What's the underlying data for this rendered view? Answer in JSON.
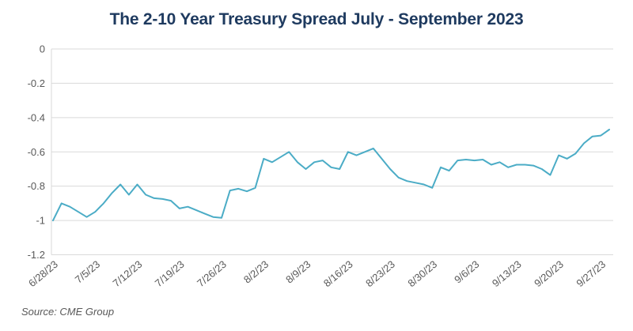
{
  "title": "The 2-10 Year Treasury Spread July - September 2023",
  "source": "Source: CME Group",
  "colors": {
    "title_text": "#1E3A5F",
    "line": "#4BACC6",
    "grid": "#D9D9D9",
    "axis_text": "#595959",
    "source_text": "#595959",
    "background": "#FFFFFF"
  },
  "chart_data": {
    "type": "line",
    "title": "The 2-10 Year Treasury Spread July - September 2023",
    "series_name": "2-10 Year Treasury Spread",
    "xlabel": "",
    "ylabel": "",
    "ylim": [
      -1.2,
      0
    ],
    "grid": "horizontal",
    "legend_position": "none",
    "y_ticks": [
      0,
      -0.2,
      -0.4,
      -0.6,
      -0.8,
      -1,
      -1.2
    ],
    "y_tick_labels": [
      "0",
      "-0.2",
      "-0.4",
      "-0.6",
      "-0.8",
      "-1",
      "-1.2"
    ],
    "x_tick_indices": [
      0,
      5,
      10,
      15,
      20,
      25,
      30,
      35,
      40,
      45,
      50,
      55,
      60,
      65
    ],
    "x_tick_labels": [
      "6/28/23",
      "7/5/23",
      "7/12/23",
      "7/19/23",
      "7/26/23",
      "8/2/23",
      "8/9/23",
      "8/16/23",
      "8/23/23",
      "8/30/23",
      "9/6/23",
      "9/13/23",
      "9/20/23",
      "9/27/23"
    ],
    "x": [
      "6/28/23",
      "6/29/23",
      "6/30/23",
      "7/3/23",
      "7/4/23",
      "7/5/23",
      "7/6/23",
      "7/7/23",
      "7/10/23",
      "7/11/23",
      "7/12/23",
      "7/13/23",
      "7/14/23",
      "7/17/23",
      "7/18/23",
      "7/19/23",
      "7/20/23",
      "7/21/23",
      "7/24/23",
      "7/25/23",
      "7/26/23",
      "7/27/23",
      "7/28/23",
      "7/31/23",
      "8/1/23",
      "8/2/23",
      "8/3/23",
      "8/4/23",
      "8/7/23",
      "8/8/23",
      "8/9/23",
      "8/10/23",
      "8/11/23",
      "8/14/23",
      "8/15/23",
      "8/16/23",
      "8/17/23",
      "8/18/23",
      "8/21/23",
      "8/22/23",
      "8/23/23",
      "8/24/23",
      "8/25/23",
      "8/28/23",
      "8/29/23",
      "8/30/23",
      "8/31/23",
      "9/1/23",
      "9/4/23",
      "9/5/23",
      "9/6/23",
      "9/7/23",
      "9/8/23",
      "9/11/23",
      "9/12/23",
      "9/13/23",
      "9/14/23",
      "9/15/23",
      "9/18/23",
      "9/19/23",
      "9/20/23",
      "9/21/23",
      "9/22/23",
      "9/25/23",
      "9/26/23",
      "9/27/23",
      "9/28/23"
    ],
    "values": [
      -1.0,
      -0.9,
      -0.92,
      -0.95,
      -0.98,
      -0.95,
      -0.9,
      -0.84,
      -0.79,
      -0.85,
      -0.79,
      -0.85,
      -0.87,
      -0.875,
      -0.885,
      -0.93,
      -0.92,
      -0.94,
      -0.96,
      -0.98,
      -0.985,
      -0.825,
      -0.815,
      -0.83,
      -0.81,
      -0.64,
      -0.66,
      -0.63,
      -0.6,
      -0.66,
      -0.7,
      -0.66,
      -0.65,
      -0.69,
      -0.7,
      -0.6,
      -0.62,
      -0.6,
      -0.58,
      -0.64,
      -0.7,
      -0.75,
      -0.77,
      -0.78,
      -0.79,
      -0.81,
      -0.69,
      -0.71,
      -0.65,
      -0.645,
      -0.65,
      -0.645,
      -0.675,
      -0.66,
      -0.69,
      -0.675,
      -0.675,
      -0.68,
      -0.7,
      -0.735,
      -0.62,
      -0.64,
      -0.61,
      -0.55,
      -0.51,
      -0.505,
      -0.47
    ]
  }
}
